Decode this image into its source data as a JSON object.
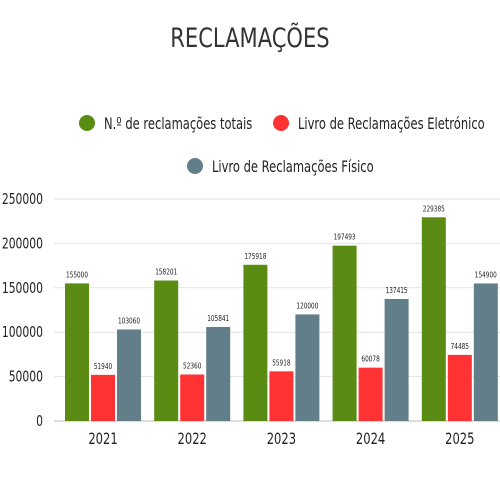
{
  "chart_data": {
    "type": "bar",
    "title": "RECLAMAÇÕES",
    "categories": [
      "2021",
      "2022",
      "2023",
      "2024",
      "2025"
    ],
    "series": [
      {
        "name": "N.º de reclamações totais",
        "color": "#5a8c14",
        "values": [
          155000,
          158201,
          175918,
          197493,
          229385
        ]
      },
      {
        "name": "Livro de Reclamações Eletrónico",
        "color": "#ff3333",
        "values": [
          51940,
          52360,
          55918,
          60078,
          74485
        ]
      },
      {
        "name": "Livro de Reclamações Físico",
        "color": "#627f89",
        "values": [
          103060,
          105841,
          120000,
          137415,
          154900
        ]
      }
    ],
    "y_ticks": [
      "0",
      "50000",
      "100000",
      "150000",
      "200000",
      "250000"
    ],
    "ylim": [
      0,
      250000
    ],
    "grid": true,
    "legend_position": "top"
  }
}
